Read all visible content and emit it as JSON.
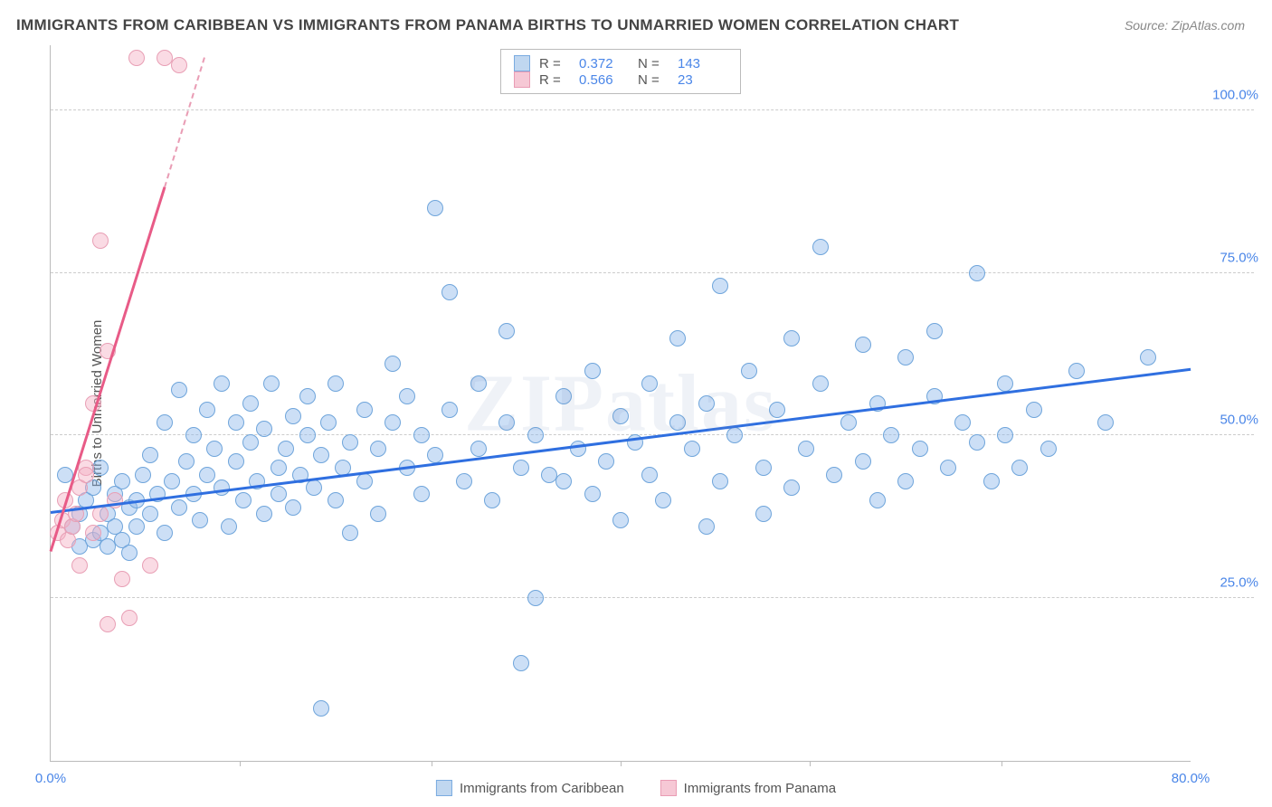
{
  "title": "IMMIGRANTS FROM CARIBBEAN VS IMMIGRANTS FROM PANAMA BIRTHS TO UNMARRIED WOMEN CORRELATION CHART",
  "source_prefix": "Source: ",
  "source_name": "ZipAtlas.com",
  "ylabel": "Births to Unmarried Women",
  "watermark": "ZIPatlas",
  "chart": {
    "type": "scatter",
    "xlim": [
      0,
      80
    ],
    "ylim": [
      0,
      110
    ],
    "ytick_values": [
      25,
      50,
      75,
      100
    ],
    "ytick_labels": [
      "25.0%",
      "50.0%",
      "75.0%",
      "100.0%"
    ],
    "xtick_values": [
      0,
      80
    ],
    "xtick_labels": [
      "0.0%",
      "80.0%"
    ],
    "xtick_minor": [
      13.3,
      26.7,
      40,
      53.3,
      66.7
    ],
    "background_color": "#ffffff",
    "grid_color": "#cccccc",
    "axis_color": "#bbbbbb",
    "label_color": "#4a86e8",
    "series": [
      {
        "name": "Immigrants from Caribbean",
        "marker_fill": "rgba(141,184,234,0.45)",
        "marker_stroke": "#6fa5db",
        "swatch_fill": "#c0d7f0",
        "swatch_stroke": "#7aabe0",
        "marker_radius": 9,
        "R": "0.372",
        "N": "143",
        "trend": {
          "x1": 0,
          "y1": 38,
          "x2": 80,
          "y2": 60,
          "color": "#2f6fe0",
          "width": 3
        },
        "points": [
          [
            1,
            44
          ],
          [
            1.5,
            36
          ],
          [
            2,
            38
          ],
          [
            2,
            33
          ],
          [
            2.5,
            40
          ],
          [
            3,
            34
          ],
          [
            3,
            42
          ],
          [
            3.5,
            35
          ],
          [
            3.5,
            45
          ],
          [
            4,
            33
          ],
          [
            4,
            38
          ],
          [
            4.5,
            36
          ],
          [
            4.5,
            41
          ],
          [
            5,
            34
          ],
          [
            5,
            43
          ],
          [
            5.5,
            39
          ],
          [
            5.5,
            32
          ],
          [
            6,
            40
          ],
          [
            6,
            36
          ],
          [
            6.5,
            44
          ],
          [
            7,
            38
          ],
          [
            7,
            47
          ],
          [
            7.5,
            41
          ],
          [
            8,
            35
          ],
          [
            8,
            52
          ],
          [
            8.5,
            43
          ],
          [
            9,
            39
          ],
          [
            9,
            57
          ],
          [
            9.5,
            46
          ],
          [
            10,
            41
          ],
          [
            10,
            50
          ],
          [
            10.5,
            37
          ],
          [
            11,
            44
          ],
          [
            11,
            54
          ],
          [
            11.5,
            48
          ],
          [
            12,
            42
          ],
          [
            12,
            58
          ],
          [
            12.5,
            36
          ],
          [
            13,
            46
          ],
          [
            13,
            52
          ],
          [
            13.5,
            40
          ],
          [
            14,
            49
          ],
          [
            14,
            55
          ],
          [
            14.5,
            43
          ],
          [
            15,
            38
          ],
          [
            15,
            51
          ],
          [
            15.5,
            58
          ],
          [
            16,
            45
          ],
          [
            16,
            41
          ],
          [
            16.5,
            48
          ],
          [
            17,
            53
          ],
          [
            17,
            39
          ],
          [
            17.5,
            44
          ],
          [
            18,
            50
          ],
          [
            18,
            56
          ],
          [
            18.5,
            42
          ],
          [
            19,
            47
          ],
          [
            19,
            8
          ],
          [
            19.5,
            52
          ],
          [
            20,
            40
          ],
          [
            20,
            58
          ],
          [
            20.5,
            45
          ],
          [
            21,
            35
          ],
          [
            21,
            49
          ],
          [
            22,
            54
          ],
          [
            22,
            43
          ],
          [
            23,
            48
          ],
          [
            23,
            38
          ],
          [
            24,
            52
          ],
          [
            24,
            61
          ],
          [
            25,
            45
          ],
          [
            25,
            56
          ],
          [
            26,
            41
          ],
          [
            26,
            50
          ],
          [
            27,
            85
          ],
          [
            27,
            47
          ],
          [
            28,
            72
          ],
          [
            28,
            54
          ],
          [
            29,
            43
          ],
          [
            30,
            48
          ],
          [
            30,
            58
          ],
          [
            31,
            40
          ],
          [
            32,
            52
          ],
          [
            32,
            66
          ],
          [
            33,
            45
          ],
          [
            33,
            15
          ],
          [
            34,
            50
          ],
          [
            34,
            25
          ],
          [
            35,
            44
          ],
          [
            36,
            56
          ],
          [
            36,
            43
          ],
          [
            37,
            48
          ],
          [
            38,
            60
          ],
          [
            38,
            41
          ],
          [
            39,
            46
          ],
          [
            40,
            53
          ],
          [
            40,
            37
          ],
          [
            41,
            49
          ],
          [
            42,
            58
          ],
          [
            42,
            44
          ],
          [
            43,
            40
          ],
          [
            44,
            52
          ],
          [
            44,
            65
          ],
          [
            45,
            48
          ],
          [
            46,
            55
          ],
          [
            46,
            36
          ],
          [
            47,
            73
          ],
          [
            47,
            43
          ],
          [
            48,
            50
          ],
          [
            49,
            60
          ],
          [
            50,
            45
          ],
          [
            50,
            38
          ],
          [
            51,
            54
          ],
          [
            52,
            42
          ],
          [
            52,
            65
          ],
          [
            53,
            48
          ],
          [
            54,
            58
          ],
          [
            54,
            79
          ],
          [
            55,
            44
          ],
          [
            56,
            52
          ],
          [
            57,
            46
          ],
          [
            57,
            64
          ],
          [
            58,
            40
          ],
          [
            58,
            55
          ],
          [
            59,
            50
          ],
          [
            60,
            62
          ],
          [
            60,
            43
          ],
          [
            61,
            48
          ],
          [
            62,
            56
          ],
          [
            62,
            66
          ],
          [
            63,
            45
          ],
          [
            64,
            52
          ],
          [
            65,
            49
          ],
          [
            65,
            75
          ],
          [
            66,
            43
          ],
          [
            67,
            58
          ],
          [
            67,
            50
          ],
          [
            68,
            45
          ],
          [
            69,
            54
          ],
          [
            70,
            48
          ],
          [
            72,
            60
          ],
          [
            74,
            52
          ],
          [
            77,
            62
          ]
        ]
      },
      {
        "name": "Immigrants from Panama",
        "marker_fill": "rgba(243,176,195,0.45)",
        "marker_stroke": "#e89fb5",
        "swatch_fill": "#f6c8d5",
        "swatch_stroke": "#e99cb4",
        "marker_radius": 9,
        "R": "0.566",
        "N": "23",
        "trend": {
          "x1": 0,
          "y1": 32,
          "x2": 8,
          "y2": 88,
          "color": "#e85b87",
          "width": 3
        },
        "trend_dash": {
          "x1": 8,
          "y1": 88,
          "x2": 10.8,
          "y2": 108,
          "color": "#e99cb4"
        },
        "points": [
          [
            0.5,
            35
          ],
          [
            0.8,
            37
          ],
          [
            1,
            40
          ],
          [
            1.2,
            34
          ],
          [
            1.5,
            36
          ],
          [
            1.8,
            38
          ],
          [
            2,
            42
          ],
          [
            2,
            30
          ],
          [
            2.5,
            45
          ],
          [
            2.5,
            44
          ],
          [
            3,
            35
          ],
          [
            3,
            55
          ],
          [
            3.5,
            38
          ],
          [
            3.5,
            80
          ],
          [
            4,
            63
          ],
          [
            4,
            21
          ],
          [
            4.5,
            40
          ],
          [
            5,
            28
          ],
          [
            5.5,
            22
          ],
          [
            6,
            108
          ],
          [
            7,
            30
          ],
          [
            8,
            108
          ],
          [
            9,
            107
          ]
        ]
      }
    ]
  }
}
